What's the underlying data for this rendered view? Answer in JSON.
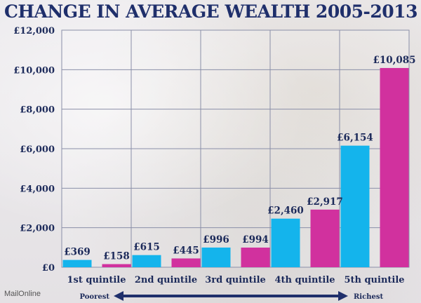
{
  "title": "CHANGE IN AVERAGE WEALTH 2005-2013",
  "source": "MailOnline",
  "colors": {
    "series1": "#14b4ec",
    "series2": "#d1319e",
    "text": "#1c2a5a",
    "title": "#1f2f6b"
  },
  "chart_data": {
    "type": "bar",
    "title": "CHANGE IN AVERAGE WEALTH 2005-2013",
    "categories": [
      "1st quintile",
      "2nd quintile",
      "3rd quintile",
      "4th quintile",
      "5th quintile"
    ],
    "series": [
      {
        "values": [
          369,
          615,
          996,
          2460,
          6154
        ],
        "labels": [
          "£369",
          "£615",
          "£996",
          "£2,460",
          "£6,154"
        ]
      },
      {
        "values": [
          158,
          445,
          994,
          2917,
          10085
        ],
        "labels": [
          "£158",
          "£445",
          "£994",
          "£2,917",
          "£10,085"
        ]
      }
    ],
    "ylim": [
      0,
      12000
    ],
    "yticks": [
      0,
      2000,
      4000,
      6000,
      8000,
      10000,
      12000
    ],
    "ytick_labels": [
      "£0",
      "£2,000",
      "£4,000",
      "£6,000",
      "£8,000",
      "£10,000",
      "£12,000"
    ],
    "grid": true,
    "arrow_left_label": "Poorest",
    "arrow_right_label": "Richest"
  }
}
